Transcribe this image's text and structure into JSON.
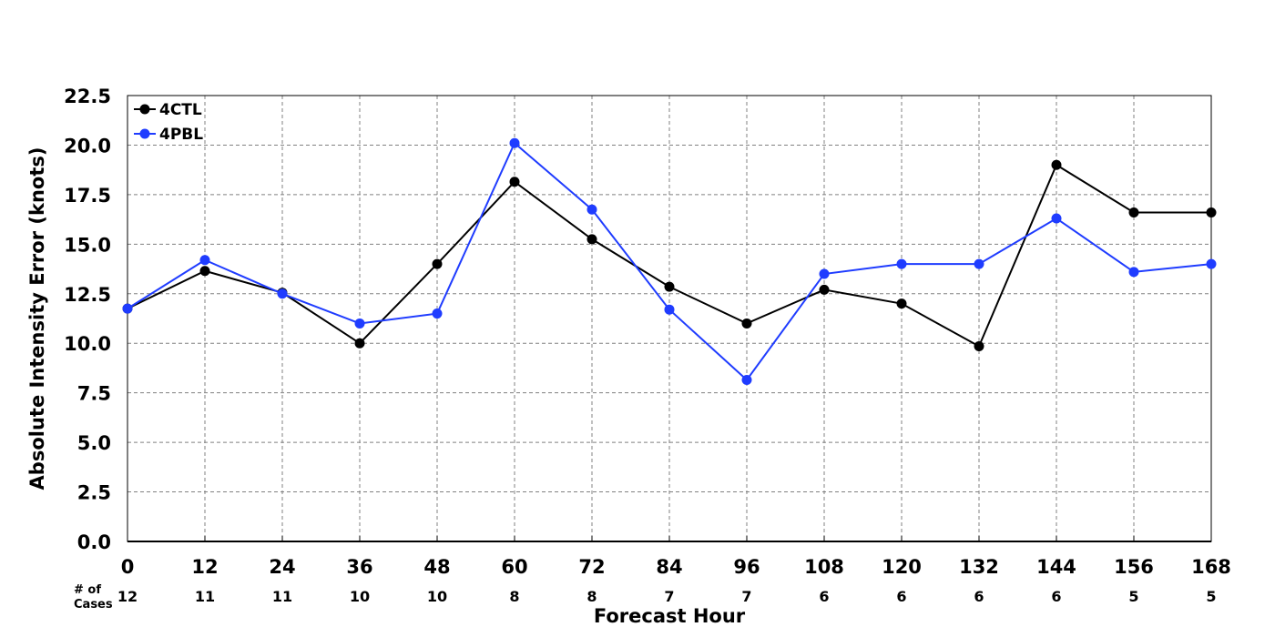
{
  "chart_data": {
    "type": "line",
    "xlabel": "Forecast Hour",
    "ylabel": "Absolute Intensity Error (knots)",
    "ylim": [
      0,
      22.5
    ],
    "xlim": [
      0,
      168
    ],
    "y_ticks": [
      "0.0",
      "2.5",
      "5.0",
      "7.5",
      "10.0",
      "12.5",
      "15.0",
      "17.5",
      "20.0",
      "22.5"
    ],
    "x": [
      0,
      12,
      24,
      36,
      48,
      60,
      72,
      84,
      96,
      108,
      120,
      132,
      144,
      156,
      168
    ],
    "grid": true,
    "legend_position": "top-left",
    "cases_label": [
      "# of",
      "Cases"
    ],
    "cases": [
      12,
      11,
      11,
      10,
      10,
      8,
      8,
      7,
      7,
      6,
      6,
      6,
      6,
      5,
      5
    ],
    "series": [
      {
        "name": "4CTL",
        "color": "#000000",
        "values": [
          11.75,
          13.65,
          12.55,
          10.0,
          14.0,
          18.15,
          15.25,
          12.85,
          11.0,
          12.7,
          12.0,
          9.85,
          19.0,
          16.6,
          16.6
        ]
      },
      {
        "name": "4PBL",
        "color": "#1f3cff",
        "values": [
          11.75,
          14.2,
          12.5,
          11.0,
          11.5,
          20.1,
          16.75,
          11.7,
          8.15,
          13.5,
          14.0,
          14.0,
          16.3,
          13.6,
          14.0
        ]
      }
    ]
  }
}
